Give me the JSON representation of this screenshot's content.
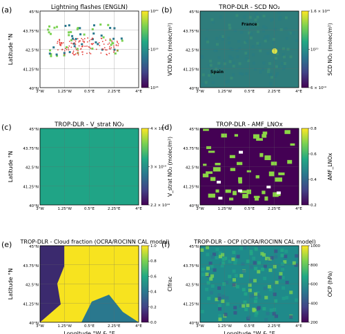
{
  "chart_data": [
    {
      "letter": "(a)",
      "title": "Lightning flashes (ENGLN)",
      "type": "heatmap",
      "ylabel": "Latitude °N",
      "xlabel": "",
      "xticks": [
        "3°W",
        "1.25°W",
        "0.5°E",
        "2.25°E",
        "4°E"
      ],
      "yticks": [
        "45°N",
        "43.75°N",
        "42.5°N",
        "41.25°N",
        "40°N"
      ],
      "colorbar": {
        "label": "VCD NO₂ (molec/m²)",
        "scale": "log",
        "range": [
          1e+18,
          1e+20
        ],
        "ticks": [
          "10²⁰",
          "10¹⁹",
          "10¹⁸"
        ],
        "colormap": "viridis"
      },
      "annotations": []
    },
    {
      "letter": "(b)",
      "title": "TROP-DLR - SCD NO₂",
      "type": "heatmap",
      "ylabel": "",
      "xlabel": "",
      "xticks": [
        "3°W",
        "1.25°W",
        "0.5°E",
        "2.25°E",
        "4°E"
      ],
      "yticks": [
        "45°N",
        "43.75°N",
        "42.5°N",
        "41.25°N",
        "40°N"
      ],
      "colorbar": {
        "label": "SCD NO₂ (molec/m²)",
        "scale": "log",
        "range": [
          6e+19,
          1.6e+20
        ],
        "ticks": [
          "1.6 × 10²⁰",
          "10²⁰",
          "6 × 10¹⁹"
        ],
        "colormap": "viridis"
      },
      "annotations": [
        "France",
        "Spain"
      ]
    },
    {
      "letter": "(c)",
      "title": "TROP-DLR - V_strat NO₂",
      "type": "heatmap",
      "ylabel": "Latitude °N",
      "xlabel": "",
      "xticks": [
        "3°W",
        "1.25°W",
        "0.5°E",
        "2.25°E",
        "4°E"
      ],
      "yticks": [
        "45°N",
        "43.75°N",
        "42.5°N",
        "41.25°N",
        "40°N"
      ],
      "colorbar": {
        "label": "V_strat NO₂ (molec/m²)",
        "scale": "log",
        "range": [
          2.2e+19,
          4.4e+19
        ],
        "ticks": [
          "4 × 10¹⁹",
          "3 × 10¹⁹",
          "2.2 × 10¹⁹"
        ],
        "colormap": "viridis"
      },
      "annotations": []
    },
    {
      "letter": "(d)",
      "title": "TROP-DLR - AMF_LNOx",
      "type": "heatmap",
      "ylabel": "",
      "xlabel": "",
      "xticks": [
        "3°W",
        "1.25°W",
        "0.5°E",
        "2.25°E",
        "4°E"
      ],
      "yticks": [
        "45°N",
        "43.75°N",
        "42.5°N",
        "41.25°N",
        "40°N"
      ],
      "colorbar": {
        "label": "AMF_LNOx",
        "scale": "linear",
        "range": [
          0.1,
          0.9
        ],
        "ticks": [
          "0.8",
          "0.6",
          "0.4",
          "0.2"
        ],
        "colormap": "viridis"
      },
      "annotations": []
    },
    {
      "letter": "(e)",
      "title": "TROP-DLR - Cloud fraction (OCRA/ROCINN CAL model)",
      "type": "heatmap",
      "ylabel": "Latitude °N",
      "xlabel": "Longitude °W & °E",
      "xticks": [
        "3°W",
        "1.25°W",
        "0.5°E",
        "2.25°E",
        "4°E"
      ],
      "yticks": [
        "45°N",
        "43.75°N",
        "42.5°N",
        "41.25°N",
        "40°N"
      ],
      "colorbar": {
        "label": "Clfrac",
        "scale": "linear",
        "range": [
          0.0,
          1.0
        ],
        "ticks": [
          "1.0",
          "0.8",
          "0.6",
          "0.4",
          "0.2",
          "0.0"
        ],
        "colormap": "viridis"
      },
      "annotations": []
    },
    {
      "letter": "(f)",
      "title": "TROP-DLR - OCP (OCRA/ROCINN CAL model)",
      "type": "heatmap",
      "ylabel": "",
      "xlabel": "Longitude °W & °E",
      "xticks": [
        "3°W",
        "1.25°W",
        "0.5°E",
        "2.25°E",
        "4°E"
      ],
      "yticks": [
        "45°N",
        "43.75°N",
        "42.5°N",
        "41.25°N",
        "40°N"
      ],
      "colorbar": {
        "label": "OCP (hPa)",
        "scale": "linear",
        "range": [
          100,
          1050
        ],
        "ticks": [
          "1000",
          "800",
          "600",
          "400",
          "200"
        ],
        "colormap": "viridis"
      },
      "annotations": []
    }
  ]
}
